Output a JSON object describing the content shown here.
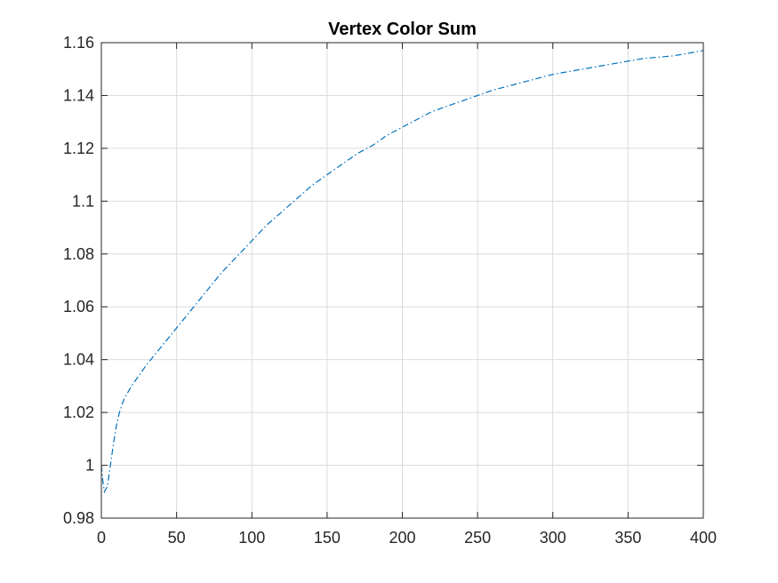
{
  "chart_data": {
    "type": "line",
    "title": "Vertex Color Sum",
    "xlabel": "",
    "ylabel": "",
    "xlim": [
      0,
      400
    ],
    "ylim": [
      0.98,
      1.16
    ],
    "grid": true,
    "x_ticks": [
      0,
      50,
      100,
      150,
      200,
      250,
      300,
      350,
      400
    ],
    "x_tick_labels": [
      "0",
      "50",
      "100",
      "150",
      "200",
      "250",
      "300",
      "350",
      "400"
    ],
    "y_ticks": [
      0.98,
      1.0,
      1.02,
      1.04,
      1.06,
      1.08,
      1.1,
      1.12,
      1.14,
      1.16
    ],
    "y_tick_labels": [
      "0.98",
      "1",
      "1.02",
      "1.04",
      "1.06",
      "1.08",
      "1.1",
      "1.12",
      "1.14",
      "1.16"
    ],
    "series": [
      {
        "color": "#0072bd",
        "line_style": "dash-dot",
        "x": [
          0,
          1,
          2,
          4,
          6,
          8,
          10,
          12,
          15,
          20,
          25,
          30,
          40,
          50,
          60,
          70,
          80,
          90,
          100,
          110,
          120,
          130,
          140,
          150,
          160,
          170,
          180,
          190,
          200,
          220,
          240,
          260,
          280,
          300,
          320,
          340,
          360,
          380,
          400
        ],
        "y": [
          1.0,
          0.994,
          0.99,
          0.992,
          1.0,
          1.008,
          1.015,
          1.02,
          1.025,
          1.03,
          1.034,
          1.038,
          1.045,
          1.052,
          1.059,
          1.066,
          1.073,
          1.079,
          1.085,
          1.091,
          1.096,
          1.101,
          1.106,
          1.11,
          1.114,
          1.118,
          1.121,
          1.125,
          1.128,
          1.134,
          1.138,
          1.142,
          1.145,
          1.148,
          1.15,
          1.152,
          1.154,
          1.155,
          1.157
        ]
      }
    ]
  }
}
